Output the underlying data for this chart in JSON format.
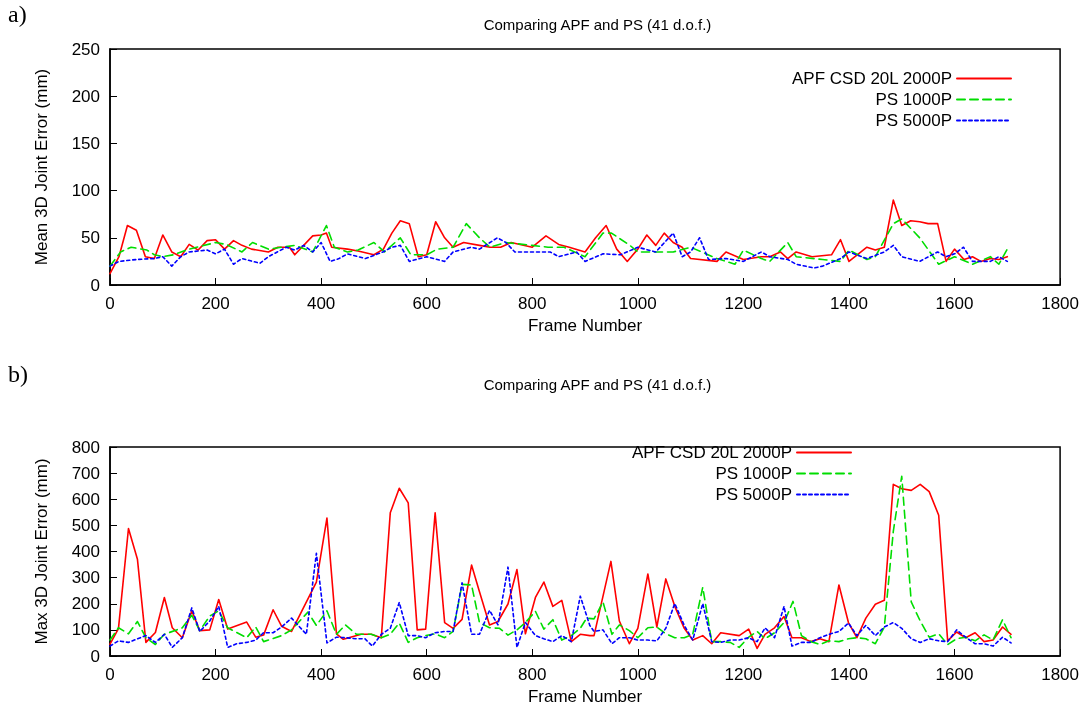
{
  "chart_data": [
    {
      "type": "line",
      "title": "Comparing APF and PS (41 d.o.f.)",
      "xlabel": "Frame Number",
      "ylabel": "Mean 3D Joint Error (mm)",
      "annotations": [
        "a)"
      ],
      "xlim": [
        0,
        1800
      ],
      "xticks": [
        0,
        200,
        400,
        600,
        800,
        1000,
        1200,
        1400,
        1600,
        1800
      ],
      "ylim": [
        0,
        250
      ],
      "yticks": [
        0,
        50,
        100,
        150,
        200,
        250
      ],
      "grid": false,
      "legend": "top right",
      "marker": "none",
      "series": [
        {
          "name": "APF CSD 20L 2000P",
          "color": "#ff0000",
          "line_style": "solid",
          "x": [
            0,
            17,
            33,
            50,
            67,
            84,
            100,
            117,
            134,
            150,
            167,
            184,
            200,
            217,
            234,
            250,
            268,
            300,
            318,
            340,
            350,
            384,
            400,
            410,
            420,
            450,
            470,
            500,
            518,
            534,
            550,
            567,
            584,
            600,
            617,
            634,
            650,
            670,
            700,
            720,
            740,
            760,
            800,
            826,
            850,
            870,
            900,
            920,
            940,
            960,
            980,
            1000,
            1017,
            1034,
            1050,
            1067,
            1084,
            1100,
            1150,
            1167,
            1200,
            1234,
            1250,
            1270,
            1284,
            1300,
            1330,
            1367,
            1384,
            1400,
            1434,
            1450,
            1467,
            1484,
            1500,
            1517,
            1534,
            1550,
            1568,
            1584,
            1600,
            1618,
            1634,
            1650,
            1668,
            1684,
            1700
          ],
          "values": [
            12,
            30,
            63,
            58,
            30,
            28,
            53,
            35,
            30,
            43,
            37,
            47,
            48,
            38,
            47,
            42,
            38,
            35,
            40,
            40,
            32,
            52,
            53,
            55,
            40,
            38,
            36,
            32,
            38,
            55,
            68,
            65,
            30,
            32,
            67,
            50,
            40,
            45,
            42,
            40,
            40,
            45,
            40,
            52,
            43,
            40,
            35,
            50,
            63,
            38,
            25,
            38,
            53,
            42,
            55,
            45,
            40,
            28,
            25,
            35,
            27,
            30,
            30,
            35,
            28,
            35,
            30,
            32,
            48,
            25,
            40,
            37,
            40,
            90,
            63,
            68,
            67,
            65,
            65,
            25,
            38,
            27,
            30,
            25,
            28,
            27,
            30
          ]
        },
        {
          "name": "PS 1000P",
          "color": "#00dd00",
          "line_style": "dashed",
          "x": [
            0,
            20,
            40,
            70,
            84,
            100,
            120,
            150,
            200,
            220,
            250,
            270,
            300,
            350,
            384,
            410,
            425,
            450,
            470,
            500,
            520,
            550,
            570,
            600,
            620,
            650,
            675,
            700,
            720,
            750,
            800,
            830,
            860,
            900,
            934,
            950,
            985,
            1000,
            1034,
            1067,
            1100,
            1150,
            1184,
            1200,
            1234,
            1250,
            1284,
            1300,
            1350,
            1384,
            1400,
            1434,
            1450,
            1484,
            1500,
            1534,
            1570,
            1600,
            1634,
            1668,
            1684,
            1700
          ],
          "values": [
            20,
            35,
            40,
            37,
            32,
            30,
            32,
            38,
            45,
            43,
            35,
            45,
            38,
            42,
            35,
            63,
            40,
            35,
            37,
            45,
            35,
            50,
            32,
            32,
            38,
            40,
            65,
            50,
            40,
            45,
            42,
            40,
            40,
            30,
            55,
            55,
            42,
            35,
            35,
            35,
            40,
            28,
            22,
            37,
            28,
            25,
            45,
            30,
            27,
            25,
            37,
            27,
            30,
            65,
            70,
            50,
            22,
            30,
            22,
            30,
            22,
            38
          ]
        },
        {
          "name": "PS 5000P",
          "color": "#0000ff",
          "line_style": "dotted",
          "x": [
            0,
            17,
            50,
            84,
            100,
            117,
            134,
            150,
            184,
            200,
            217,
            234,
            250,
            284,
            300,
            334,
            350,
            367,
            384,
            400,
            417,
            434,
            450,
            484,
            517,
            534,
            550,
            567,
            600,
            634,
            650,
            684,
            700,
            734,
            750,
            767,
            800,
            834,
            850,
            884,
            900,
            934,
            967,
            1000,
            1034,
            1067,
            1084,
            1100,
            1117,
            1134,
            1167,
            1200,
            1234,
            1250,
            1284,
            1300,
            1334,
            1350,
            1384,
            1400,
            1434,
            1467,
            1484,
            1500,
            1534,
            1568,
            1584,
            1600,
            1617,
            1634,
            1668,
            1684,
            1700
          ],
          "values": [
            20,
            25,
            27,
            28,
            30,
            20,
            30,
            35,
            37,
            33,
            38,
            22,
            28,
            23,
            30,
            40,
            37,
            42,
            35,
            45,
            25,
            28,
            33,
            28,
            35,
            40,
            42,
            25,
            30,
            25,
            35,
            40,
            38,
            50,
            45,
            35,
            35,
            35,
            30,
            35,
            25,
            33,
            32,
            40,
            35,
            55,
            30,
            35,
            50,
            27,
            28,
            25,
            35,
            30,
            27,
            22,
            18,
            20,
            28,
            35,
            28,
            35,
            42,
            30,
            25,
            35,
            30,
            33,
            40,
            25,
            25,
            30,
            25
          ]
        }
      ]
    },
    {
      "type": "line",
      "title": "Comparing APF and PS (41 d.o.f.)",
      "xlabel": "Frame Number",
      "ylabel": "Max 3D Joint Error (mm)",
      "annotations": [
        "b)"
      ],
      "xlim": [
        0,
        1800
      ],
      "xticks": [
        0,
        200,
        400,
        600,
        800,
        1000,
        1200,
        1400,
        1600,
        1800
      ],
      "ylim": [
        0,
        800
      ],
      "yticks": [
        0,
        100,
        200,
        300,
        400,
        500,
        600,
        700,
        800
      ],
      "grid": false,
      "legend": "top right",
      "marker": "none",
      "series": [
        {
          "name": "APF CSD 20L 2000P",
          "color": "#ff0000",
          "line_style": "solid",
          "x": [
            0,
            16,
            35,
            52,
            68,
            86,
            103,
            118,
            137,
            155,
            170,
            189,
            206,
            223,
            259,
            276,
            291,
            309,
            325,
            344,
            391,
            411,
            429,
            442,
            476,
            495,
            514,
            531,
            548,
            565,
            582,
            598,
            616,
            634,
            650,
            667,
            685,
            700,
            719,
            735,
            754,
            771,
            787,
            806,
            822,
            839,
            856,
            874,
            891,
            909,
            917,
            949,
            965,
            984,
            1000,
            1019,
            1036,
            1053,
            1070,
            1088,
            1104,
            1123,
            1140,
            1157,
            1192,
            1210,
            1226,
            1241,
            1259,
            1277,
            1292,
            1310,
            1328,
            1345,
            1362,
            1381,
            1399,
            1415,
            1432,
            1450,
            1467,
            1484,
            1500,
            1518,
            1535,
            1552,
            1570,
            1587,
            1604,
            1621,
            1639,
            1656,
            1673,
            1691,
            1707
          ],
          "values": [
            45,
            105,
            488,
            370,
            52,
            90,
            224,
            108,
            70,
            173,
            97,
            100,
            216,
            103,
            130,
            72,
            80,
            177,
            114,
            94,
            283,
            528,
            85,
            64,
            83,
            83,
            70,
            548,
            642,
            586,
            100,
            103,
            548,
            128,
            106,
            140,
            348,
            246,
            119,
            132,
            199,
            331,
            85,
            224,
            283,
            190,
            213,
            55,
            83,
            78,
            78,
            362,
            134,
            47,
            106,
            314,
            111,
            295,
            190,
            106,
            61,
            78,
            47,
            89,
            78,
            103,
            29,
            83,
            108,
            151,
            70,
            70,
            55,
            66,
            55,
            272,
            128,
            70,
            145,
            198,
            213,
            657,
            640,
            634,
            657,
            629,
            539,
            58,
            92,
            70,
            89,
            55,
            61,
            111,
            83
          ]
        },
        {
          "name": "PS 1000P",
          "color": "#00dd00",
          "line_style": "dashed",
          "x": [
            0,
            16,
            35,
            52,
            68,
            86,
            103,
            137,
            155,
            170,
            189,
            206,
            223,
            259,
            276,
            291,
            325,
            344,
            375,
            391,
            411,
            429,
            446,
            467,
            495,
            514,
            531,
            548,
            565,
            582,
            598,
            616,
            634,
            650,
            667,
            685,
            700,
            719,
            738,
            754,
            771,
            787,
            806,
            822,
            839,
            856,
            874,
            891,
            903,
            917,
            934,
            951,
            965,
            984,
            1000,
            1019,
            1036,
            1053,
            1070,
            1088,
            1104,
            1123,
            1140,
            1157,
            1175,
            1192,
            1210,
            1226,
            1241,
            1259,
            1277,
            1294,
            1310,
            1328,
            1345,
            1362,
            1381,
            1399,
            1415,
            1432,
            1450,
            1467,
            1484,
            1500,
            1518,
            1535,
            1552,
            1570,
            1587,
            1604,
            1621,
            1639,
            1656,
            1673,
            1691,
            1707
          ],
          "values": [
            61,
            108,
            85,
            132,
            70,
            44,
            83,
            108,
            156,
            97,
            153,
            173,
            108,
            70,
            111,
            55,
            78,
            100,
            168,
            117,
            173,
            83,
            119,
            83,
            83,
            70,
            83,
            126,
            52,
            70,
            78,
            85,
            70,
            94,
            274,
            272,
            128,
            108,
            106,
            80,
            100,
            128,
            171,
            103,
            139,
            61,
            78,
            106,
            145,
            142,
            207,
            83,
            119,
            97,
            70,
            108,
            111,
            85,
            70,
            70,
            83,
            263,
            55,
            55,
            52,
            33,
            72,
            94,
            66,
            89,
            128,
            209,
            78,
            55,
            44,
            58,
            55,
            66,
            70,
            66,
            47,
            111,
            477,
            688,
            207,
            134,
            72,
            85,
            44,
            66,
            72,
            58,
            81,
            61,
            139,
            70
          ]
        },
        {
          "name": "PS 5000P",
          "color": "#0000ff",
          "line_style": "dotted",
          "x": [
            0,
            16,
            35,
            52,
            68,
            86,
            103,
            118,
            137,
            155,
            170,
            189,
            206,
            223,
            240,
            259,
            276,
            291,
            309,
            325,
            344,
            372,
            391,
            411,
            429,
            446,
            467,
            483,
            497,
            514,
            531,
            548,
            565,
            582,
            598,
            616,
            634,
            650,
            667,
            685,
            700,
            719,
            735,
            754,
            771,
            787,
            806,
            822,
            839,
            856,
            874,
            891,
            909,
            917,
            934,
            951,
            965,
            984,
            1000,
            1019,
            1036,
            1053,
            1070,
            1088,
            1104,
            1123,
            1140,
            1157,
            1175,
            1192,
            1210,
            1226,
            1241,
            1259,
            1277,
            1292,
            1310,
            1328,
            1345,
            1362,
            1381,
            1399,
            1415,
            1432,
            1450,
            1467,
            1484,
            1500,
            1518,
            1535,
            1552,
            1570,
            1587,
            1604,
            1621,
            1639,
            1656,
            1673,
            1691,
            1707
          ],
          "values": [
            38,
            58,
            52,
            66,
            78,
            52,
            83,
            33,
            70,
            184,
            94,
            134,
            190,
            33,
            47,
            52,
            61,
            89,
            89,
            111,
            145,
            83,
            393,
            50,
            72,
            70,
            66,
            66,
            38,
            83,
            106,
            205,
            78,
            78,
            70,
            89,
            94,
            94,
            280,
            83,
            83,
            175,
            119,
            340,
            33,
            128,
            78,
            66,
            55,
            78,
            55,
            229,
            117,
            94,
            100,
            47,
            70,
            70,
            61,
            61,
            58,
            106,
            201,
            117,
            61,
            201,
            55,
            52,
            61,
            61,
            70,
            55,
            108,
            70,
            190,
            38,
            52,
            52,
            70,
            83,
            94,
            126,
            78,
            117,
            78,
            111,
            128,
            106,
            66,
            52,
            66,
            58,
            55,
            100,
            72,
            47,
            47,
            38,
            72,
            50
          ]
        }
      ]
    }
  ]
}
